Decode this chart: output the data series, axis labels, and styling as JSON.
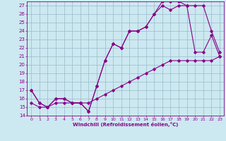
{
  "xlabel": "Windchill (Refroidissement éolien,°C)",
  "xlim": [
    -0.5,
    23.5
  ],
  "ylim": [
    14,
    27.5
  ],
  "xticks": [
    0,
    1,
    2,
    3,
    4,
    5,
    6,
    7,
    8,
    9,
    10,
    11,
    12,
    13,
    14,
    15,
    16,
    17,
    18,
    19,
    20,
    21,
    22,
    23
  ],
  "yticks": [
    14,
    15,
    16,
    17,
    18,
    19,
    20,
    21,
    22,
    23,
    24,
    25,
    26,
    27
  ],
  "bg_color": "#cce8f0",
  "line_color": "#880088",
  "grid_color": "#99bbcc",
  "lines": [
    {
      "x": [
        0,
        1,
        2,
        3,
        4,
        5,
        6,
        7,
        8,
        9,
        10,
        11,
        12,
        13,
        14,
        15,
        16,
        17,
        18,
        19,
        20,
        21,
        22,
        23
      ],
      "y": [
        17,
        15.5,
        15,
        16,
        16,
        15.5,
        15.5,
        14.5,
        17.5,
        20.5,
        22.5,
        22,
        24,
        24,
        24.5,
        26,
        27.5,
        27.5,
        27.5,
        27,
        27,
        27,
        24,
        21.5
      ]
    },
    {
      "x": [
        0,
        1,
        2,
        3,
        4,
        5,
        6,
        7,
        8,
        9,
        10,
        11,
        12,
        13,
        14,
        15,
        16,
        17,
        18,
        19,
        20,
        21,
        22,
        23
      ],
      "y": [
        17,
        15.5,
        15,
        16,
        16,
        15.5,
        15.5,
        14.5,
        17.5,
        20.5,
        22.5,
        22,
        24,
        24,
        24.5,
        26,
        27,
        26.5,
        27,
        27,
        21.5,
        21.5,
        23.5,
        21
      ]
    },
    {
      "x": [
        0,
        1,
        2,
        3,
        4,
        5,
        6,
        7,
        8,
        9,
        10,
        11,
        12,
        13,
        14,
        15,
        16,
        17,
        18,
        19,
        20,
        21,
        22,
        23
      ],
      "y": [
        15.5,
        15,
        15,
        15.5,
        15.5,
        15.5,
        15.5,
        15.5,
        16,
        16.5,
        17,
        17.5,
        18,
        18.5,
        19,
        19.5,
        20,
        20.5,
        20.5,
        20.5,
        20.5,
        20.5,
        20.5,
        21
      ]
    }
  ]
}
